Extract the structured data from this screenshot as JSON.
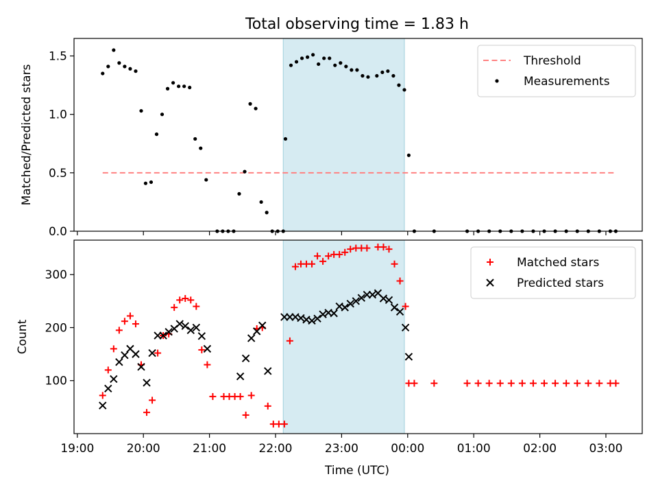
{
  "chart_data": {
    "title": "Total observing time = 1.83 h",
    "xlabel": "Time (UTC)",
    "x_ticks": [
      {
        "label": "19:00",
        "t": -5.0
      },
      {
        "label": "20:00",
        "t": -4.0
      },
      {
        "label": "21:00",
        "t": -3.0
      },
      {
        "label": "22:00",
        "t": -2.0
      },
      {
        "label": "23:00",
        "t": -1.0
      },
      {
        "label": "00:00",
        "t": 0.0
      },
      {
        "label": "01:00",
        "t": 1.0
      },
      {
        "label": "02:00",
        "t": 2.0
      },
      {
        "label": "03:00",
        "t": 3.0
      }
    ],
    "xlim": [
      "18:57",
      "03:33"
    ],
    "highlight_span": [
      "22:07",
      "23:57"
    ],
    "highlight_color": "#add8e6",
    "panels": [
      {
        "type": "scatter",
        "ylabel": "Matched/Predicted stars",
        "ylim": [
          0,
          1.65
        ],
        "yticks": [
          0.0,
          0.5,
          1.0,
          1.5
        ],
        "ytick_labels": [
          "0.0",
          "0.5",
          "1.0",
          "1.5"
        ],
        "legend_position": "top-right",
        "threshold": {
          "name": "Threshold",
          "value": 0.5,
          "x_range": [
            "19:23",
            "03:08"
          ],
          "color": "#ff8080"
        },
        "series": [
          {
            "name": "Measurements",
            "color": "#000000",
            "marker": "dot",
            "points": [
              [
                "19:23",
                1.35
              ],
              [
                "19:28",
                1.41
              ],
              [
                "19:33",
                1.55
              ],
              [
                "19:38",
                1.44
              ],
              [
                "19:43",
                1.41
              ],
              [
                "19:48",
                1.39
              ],
              [
                "19:53",
                1.37
              ],
              [
                "19:58",
                1.03
              ],
              [
                "20:02",
                0.41
              ],
              [
                "20:07",
                0.42
              ],
              [
                "20:12",
                0.83
              ],
              [
                "20:17",
                1.0
              ],
              [
                "20:22",
                1.22
              ],
              [
                "20:27",
                1.27
              ],
              [
                "20:32",
                1.24
              ],
              [
                "20:37",
                1.24
              ],
              [
                "20:42",
                1.23
              ],
              [
                "20:47",
                0.79
              ],
              [
                "20:52",
                0.71
              ],
              [
                "20:57",
                0.44
              ],
              [
                "21:07",
                0.0
              ],
              [
                "21:12",
                0.0
              ],
              [
                "21:17",
                0.0
              ],
              [
                "21:22",
                0.0
              ],
              [
                "21:27",
                0.32
              ],
              [
                "21:32",
                0.51
              ],
              [
                "21:37",
                1.09
              ],
              [
                "21:42",
                1.05
              ],
              [
                "21:47",
                0.25
              ],
              [
                "21:52",
                0.16
              ],
              [
                "21:57",
                0.0
              ],
              [
                "22:02",
                0.0
              ],
              [
                "22:07",
                0.0
              ],
              [
                "22:09",
                0.79
              ],
              [
                "22:14",
                1.42
              ],
              [
                "22:19",
                1.45
              ],
              [
                "22:24",
                1.48
              ],
              [
                "22:29",
                1.49
              ],
              [
                "22:34",
                1.51
              ],
              [
                "22:39",
                1.43
              ],
              [
                "22:44",
                1.48
              ],
              [
                "22:49",
                1.48
              ],
              [
                "22:54",
                1.42
              ],
              [
                "22:59",
                1.44
              ],
              [
                "23:04",
                1.41
              ],
              [
                "23:09",
                1.38
              ],
              [
                "23:14",
                1.38
              ],
              [
                "23:19",
                1.33
              ],
              [
                "23:24",
                1.32
              ],
              [
                "23:32",
                1.33
              ],
              [
                "23:37",
                1.36
              ],
              [
                "23:42",
                1.37
              ],
              [
                "23:47",
                1.33
              ],
              [
                "23:52",
                1.25
              ],
              [
                "23:57",
                1.21
              ],
              [
                "00:01",
                0.65
              ],
              [
                "00:06",
                0.0
              ],
              [
                "00:24",
                0.0
              ],
              [
                "00:54",
                0.0
              ],
              [
                "01:04",
                0.0
              ],
              [
                "01:14",
                0.0
              ],
              [
                "01:24",
                0.0
              ],
              [
                "01:34",
                0.0
              ],
              [
                "01:44",
                0.0
              ],
              [
                "01:54",
                0.0
              ],
              [
                "02:04",
                0.0
              ],
              [
                "02:14",
                0.0
              ],
              [
                "02:24",
                0.0
              ],
              [
                "02:34",
                0.0
              ],
              [
                "02:44",
                0.0
              ],
              [
                "02:54",
                0.0
              ],
              [
                "03:04",
                0.0
              ],
              [
                "03:09",
                0.0
              ]
            ]
          }
        ]
      },
      {
        "type": "scatter",
        "ylabel": "Count",
        "ylim": [
          0,
          365
        ],
        "yticks": [
          100,
          200,
          300
        ],
        "ytick_labels": [
          "100",
          "200",
          "300"
        ],
        "legend_position": "top-right",
        "series": [
          {
            "name": "Matched stars",
            "color": "#ff0000",
            "marker": "plus",
            "points": [
              [
                "19:23",
                72
              ],
              [
                "19:28",
                120
              ],
              [
                "19:33",
                160
              ],
              [
                "19:38",
                195
              ],
              [
                "19:43",
                212
              ],
              [
                "19:48",
                222
              ],
              [
                "19:53",
                207
              ],
              [
                "19:58",
                130
              ],
              [
                "20:03",
                40
              ],
              [
                "20:08",
                63
              ],
              [
                "20:13",
                152
              ],
              [
                "20:18",
                185
              ],
              [
                "20:23",
                188
              ],
              [
                "20:28",
                238
              ],
              [
                "20:33",
                252
              ],
              [
                "20:38",
                255
              ],
              [
                "20:43",
                252
              ],
              [
                "20:48",
                240
              ],
              [
                "20:53",
                158
              ],
              [
                "20:58",
                130
              ],
              [
                "21:03",
                70
              ],
              [
                "21:13",
                70
              ],
              [
                "21:18",
                70
              ],
              [
                "21:23",
                70
              ],
              [
                "21:28",
                70
              ],
              [
                "21:33",
                35
              ],
              [
                "21:38",
                72
              ],
              [
                "21:43",
                198
              ],
              [
                "21:48",
                200
              ],
              [
                "21:53",
                52
              ],
              [
                "21:58",
                18
              ],
              [
                "22:03",
                18
              ],
              [
                "22:08",
                18
              ],
              [
                "22:13",
                175
              ],
              [
                "22:18",
                315
              ],
              [
                "22:23",
                320
              ],
              [
                "22:28",
                320
              ],
              [
                "22:33",
                320
              ],
              [
                "22:38",
                335
              ],
              [
                "22:43",
                325
              ],
              [
                "22:48",
                335
              ],
              [
                "22:53",
                338
              ],
              [
                "22:58",
                338
              ],
              [
                "23:03",
                342
              ],
              [
                "23:08",
                348
              ],
              [
                "23:13",
                350
              ],
              [
                "23:18",
                350
              ],
              [
                "23:23",
                350
              ],
              [
                "23:33",
                352
              ],
              [
                "23:38",
                352
              ],
              [
                "23:43",
                348
              ],
              [
                "23:48",
                320
              ],
              [
                "23:53",
                288
              ],
              [
                "23:58",
                240
              ],
              [
                "00:01",
                95
              ],
              [
                "00:06",
                95
              ],
              [
                "00:24",
                95
              ],
              [
                "00:54",
                95
              ],
              [
                "01:04",
                95
              ],
              [
                "01:14",
                95
              ],
              [
                "01:24",
                95
              ],
              [
                "01:34",
                95
              ],
              [
                "01:44",
                95
              ],
              [
                "01:54",
                95
              ],
              [
                "02:04",
                95
              ],
              [
                "02:14",
                95
              ],
              [
                "02:24",
                95
              ],
              [
                "02:34",
                95
              ],
              [
                "02:44",
                95
              ],
              [
                "02:54",
                95
              ],
              [
                "03:04",
                95
              ],
              [
                "03:09",
                95
              ]
            ]
          },
          {
            "name": "Predicted stars",
            "color": "#000000",
            "marker": "x",
            "points": [
              [
                "19:23",
                53
              ],
              [
                "19:28",
                85
              ],
              [
                "19:33",
                103
              ],
              [
                "19:38",
                135
              ],
              [
                "19:43",
                148
              ],
              [
                "19:48",
                160
              ],
              [
                "19:53",
                150
              ],
              [
                "19:58",
                126
              ],
              [
                "20:03",
                96
              ],
              [
                "20:08",
                152
              ],
              [
                "20:13",
                185
              ],
              [
                "20:18",
                185
              ],
              [
                "20:23",
                192
              ],
              [
                "20:28",
                198
              ],
              [
                "20:33",
                207
              ],
              [
                "20:38",
                203
              ],
              [
                "20:43",
                195
              ],
              [
                "20:48",
                200
              ],
              [
                "20:53",
                184
              ],
              [
                "20:58",
                160
              ],
              [
                "21:28",
                108
              ],
              [
                "21:33",
                142
              ],
              [
                "21:38",
                180
              ],
              [
                "21:43",
                193
              ],
              [
                "21:48",
                204
              ],
              [
                "21:53",
                118
              ],
              [
                "22:08",
                220
              ],
              [
                "22:13",
                220
              ],
              [
                "22:18",
                220
              ],
              [
                "22:23",
                218
              ],
              [
                "22:28",
                215
              ],
              [
                "22:33",
                213
              ],
              [
                "22:38",
                217
              ],
              [
                "22:43",
                225
              ],
              [
                "22:48",
                228
              ],
              [
                "22:53",
                227
              ],
              [
                "22:58",
                240
              ],
              [
                "23:03",
                238
              ],
              [
                "23:08",
                245
              ],
              [
                "23:13",
                250
              ],
              [
                "23:18",
                256
              ],
              [
                "23:23",
                262
              ],
              [
                "23:28",
                262
              ],
              [
                "23:33",
                265
              ],
              [
                "23:38",
                255
              ],
              [
                "23:43",
                252
              ],
              [
                "23:48",
                238
              ],
              [
                "23:53",
                230
              ],
              [
                "23:58",
                200
              ],
              [
                "00:01",
                145
              ]
            ]
          }
        ]
      }
    ]
  }
}
